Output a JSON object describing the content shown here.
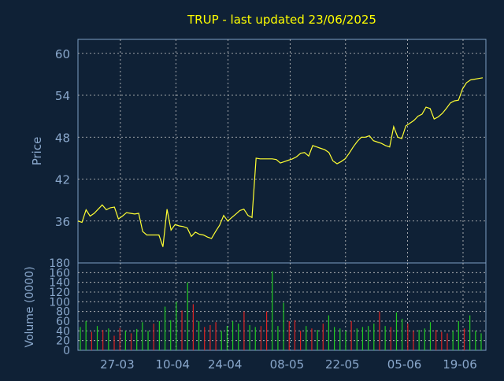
{
  "title": "TRUP - last updated 23/06/2025",
  "colors": {
    "background": "#0f2136",
    "frame": "#7ea0c4",
    "grid": "#c8c8c8",
    "title": "#ffff00",
    "price_line": "#ffff33",
    "axis_text": "#8aa8cc",
    "volume_up": "#22cc22",
    "volume_down": "#dd2222"
  },
  "chart_data": [
    {
      "type": "line",
      "name": "price",
      "ylabel": "Price",
      "ylim": [
        30,
        62
      ],
      "yticks": [
        36,
        42,
        48,
        54,
        60
      ],
      "grid": true,
      "x_range": [
        0,
        125
      ],
      "x_ticks": [
        {
          "x": 13,
          "label": "27-03"
        },
        {
          "x": 30,
          "label": "10-04"
        },
        {
          "x": 46,
          "label": "24-04"
        },
        {
          "x": 65,
          "label": "08-05"
        },
        {
          "x": 82,
          "label": "22-05"
        },
        {
          "x": 101,
          "label": "05-06"
        },
        {
          "x": 118,
          "label": "19-06"
        }
      ],
      "values": [
        36.0,
        35.8,
        37.6,
        36.7,
        37.1,
        37.7,
        38.3,
        37.6,
        37.9,
        38.0,
        36.3,
        36.7,
        37.2,
        37.1,
        37.0,
        37.1,
        34.5,
        34.0,
        34.0,
        34.0,
        34.0,
        32.3,
        37.7,
        34.7,
        35.5,
        35.3,
        35.2,
        35.0,
        33.8,
        34.4,
        34.1,
        34.0,
        33.7,
        33.5,
        34.5,
        35.4,
        36.8,
        36.0,
        36.5,
        37.0,
        37.5,
        37.7,
        36.8,
        36.5,
        45.0,
        44.9,
        44.9,
        44.9,
        44.9,
        44.8,
        44.3,
        44.5,
        44.7,
        44.9,
        45.2,
        45.7,
        45.8,
        45.3,
        46.8,
        46.6,
        46.4,
        46.2,
        45.8,
        44.6,
        44.2,
        44.5,
        44.9,
        45.7,
        46.6,
        47.4,
        48.0,
        48.0,
        48.2,
        47.5,
        47.3,
        47.1,
        46.8,
        46.6,
        49.5,
        48.0,
        47.8,
        49.6,
        50.0,
        50.4,
        51.0,
        51.3,
        52.3,
        52.1,
        50.6,
        50.9,
        51.4,
        52.1,
        52.9,
        53.2,
        53.3,
        54.9,
        55.8,
        56.2,
        56.3,
        56.4,
        56.5
      ]
    },
    {
      "type": "bar",
      "name": "volume",
      "ylabel": "Volume (0000)",
      "ylim": [
        0,
        180
      ],
      "yticks": [
        0,
        20,
        40,
        60,
        80,
        100,
        120,
        140,
        160,
        180
      ],
      "grid": true,
      "values": [
        48,
        60,
        38,
        50,
        42,
        45,
        30,
        46,
        40,
        35,
        44,
        58,
        40,
        55,
        60,
        90,
        62,
        100,
        82,
        140,
        95,
        60,
        48,
        52,
        58,
        40,
        50,
        60,
        55,
        80,
        52,
        48,
        50,
        80,
        163,
        50,
        98,
        60,
        62,
        40,
        50,
        45,
        42,
        55,
        72,
        48,
        45,
        40,
        60,
        45,
        48,
        50,
        55,
        80,
        50,
        48,
        78,
        65,
        55,
        40,
        42,
        45,
        58,
        42,
        38,
        35,
        40,
        60,
        45,
        72,
        40,
        35
      ],
      "up_down": [
        "up",
        "up",
        "down",
        "up",
        "down",
        "up",
        "down",
        "down",
        "up",
        "down",
        "up",
        "up",
        "up",
        "down",
        "up",
        "up",
        "up",
        "up",
        "down",
        "up",
        "down",
        "up",
        "down",
        "down",
        "down",
        "up",
        "up",
        "up",
        "up",
        "down",
        "up",
        "up",
        "down",
        "down",
        "up",
        "up",
        "up",
        "down",
        "down",
        "down",
        "up",
        "down",
        "up",
        "down",
        "up",
        "up",
        "up",
        "up",
        "down",
        "up",
        "up",
        "up",
        "up",
        "down",
        "up",
        "down",
        "up",
        "up",
        "down",
        "down",
        "up",
        "up",
        "up",
        "down",
        "down",
        "down",
        "up",
        "up",
        "down",
        "up",
        "up",
        "up"
      ]
    }
  ]
}
